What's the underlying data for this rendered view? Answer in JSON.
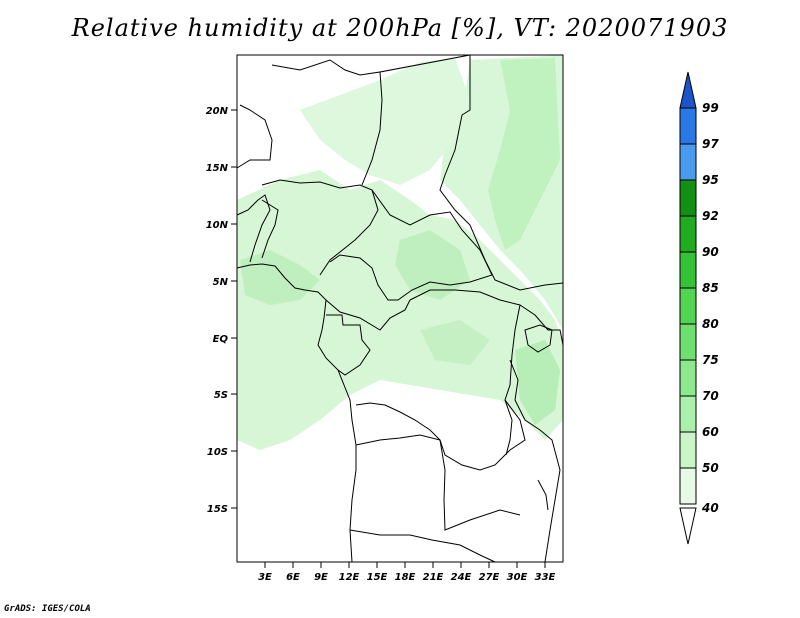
{
  "title": "Relative humidity at 200hPa [%], VT: 2020071903",
  "credit": "GrADS: IGES/COLA",
  "map": {
    "lat_labels": [
      "20N",
      "15N",
      "10N",
      "5N",
      "EQ",
      "5S",
      "10S",
      "15S"
    ],
    "lon_labels": [
      "3E",
      "6E",
      "9E",
      "12E",
      "15E",
      "18E",
      "21E",
      "24E",
      "27E",
      "30E",
      "33E"
    ]
  },
  "colorbar": {
    "labels": [
      "40",
      "50",
      "60",
      "70",
      "75",
      "80",
      "85",
      "90",
      "92",
      "95",
      "97",
      "99"
    ],
    "colors": [
      "#ffffff",
      "#e6fae6",
      "#c9f5c9",
      "#aaf0aa",
      "#8ee88e",
      "#6fe06f",
      "#52d552",
      "#36c236",
      "#20ab20",
      "#138f13",
      "#4a9bf0",
      "#2a78e6",
      "#1a56c8"
    ]
  }
}
